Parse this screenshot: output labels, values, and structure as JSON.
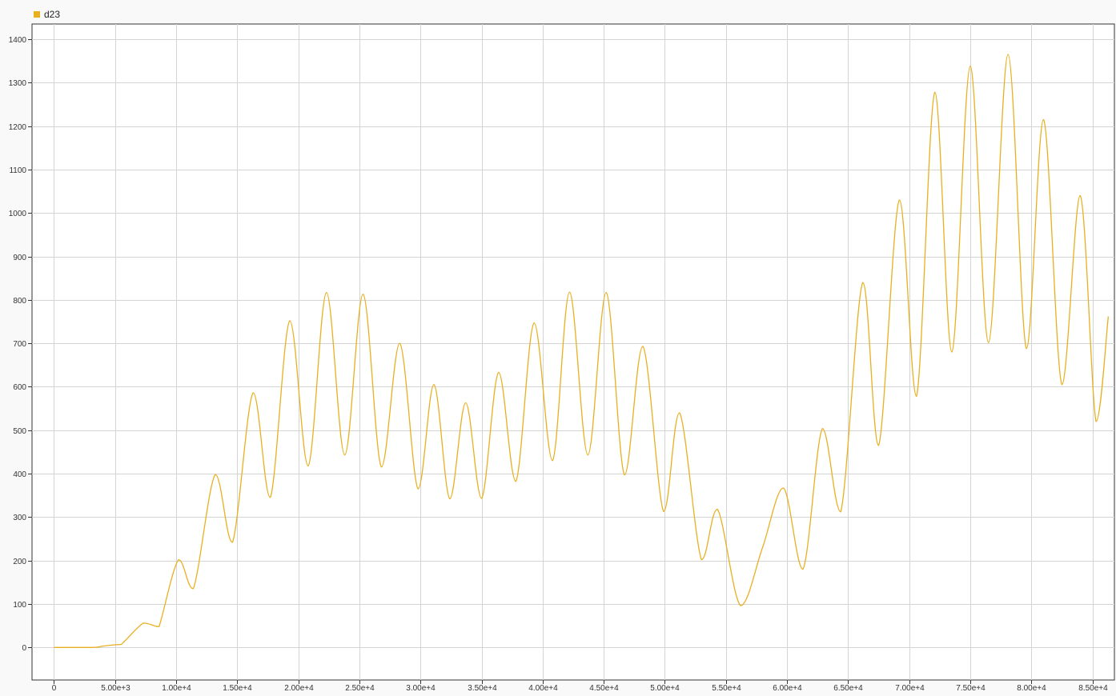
{
  "chart_data": {
    "type": "line",
    "title": "",
    "xlabel": "",
    "ylabel": "",
    "grid": true,
    "legend_position": "top-left",
    "xlim": [
      -1800,
      86800
    ],
    "ylim": [
      -75,
      1435
    ],
    "x_ticks": [
      0,
      5000,
      10000,
      15000,
      20000,
      25000,
      30000,
      35000,
      40000,
      45000,
      50000,
      55000,
      60000,
      65000,
      70000,
      75000,
      80000,
      85000
    ],
    "x_tick_labels": [
      "0",
      "5.00e+3",
      "1.00e+4",
      "1.50e+4",
      "2.00e+4",
      "2.50e+4",
      "3.00e+4",
      "3.50e+4",
      "4.00e+4",
      "4.50e+4",
      "5.00e+4",
      "5.50e+4",
      "6.00e+4",
      "6.50e+4",
      "7.00e+4",
      "7.50e+4",
      "8.00e+4",
      "8.50e+4"
    ],
    "y_ticks": [
      0,
      100,
      200,
      300,
      400,
      500,
      600,
      700,
      800,
      900,
      1000,
      1100,
      1200,
      1300,
      1400
    ],
    "y_tick_labels": [
      "0",
      "100",
      "200",
      "300",
      "400",
      "500",
      "600",
      "700",
      "800",
      "900",
      "1000",
      "1100",
      "1200",
      "1300",
      "1400"
    ],
    "series": [
      {
        "name": "d23",
        "color": "#e8b021",
        "points": [
          [
            0,
            0
          ],
          [
            3200,
            0
          ],
          [
            4000,
            3
          ],
          [
            5000,
            6
          ],
          [
            5500,
            7
          ],
          [
            7300,
            56
          ],
          [
            8200,
            50
          ],
          [
            8600,
            48
          ],
          [
            10200,
            202
          ],
          [
            11400,
            135
          ],
          [
            13200,
            398
          ],
          [
            14600,
            242
          ],
          [
            16300,
            586
          ],
          [
            17700,
            345
          ],
          [
            19300,
            752
          ],
          [
            20800,
            418
          ],
          [
            22300,
            817
          ],
          [
            23800,
            443
          ],
          [
            25300,
            813
          ],
          [
            26800,
            415
          ],
          [
            28300,
            700
          ],
          [
            29800,
            365
          ],
          [
            31100,
            605
          ],
          [
            32400,
            342
          ],
          [
            33700,
            563
          ],
          [
            35000,
            343
          ],
          [
            36400,
            633
          ],
          [
            37800,
            382
          ],
          [
            39300,
            747
          ],
          [
            40800,
            430
          ],
          [
            42200,
            818
          ],
          [
            43700,
            443
          ],
          [
            45200,
            817
          ],
          [
            46700,
            397
          ],
          [
            48200,
            693
          ],
          [
            49900,
            313
          ],
          [
            51200,
            540
          ],
          [
            53000,
            202
          ],
          [
            54300,
            318
          ],
          [
            56200,
            96
          ],
          [
            58000,
            230
          ],
          [
            59700,
            367
          ],
          [
            61300,
            180
          ],
          [
            62900,
            504
          ],
          [
            64400,
            312
          ],
          [
            66200,
            840
          ],
          [
            67500,
            465
          ],
          [
            69200,
            1030
          ],
          [
            70600,
            578
          ],
          [
            72100,
            1278
          ],
          [
            73500,
            680
          ],
          [
            75000,
            1338
          ],
          [
            76500,
            702
          ],
          [
            78100,
            1365
          ],
          [
            79600,
            688
          ],
          [
            81000,
            1215
          ],
          [
            82500,
            605
          ],
          [
            84000,
            1040
          ],
          [
            85300,
            520
          ],
          [
            86300,
            762
          ]
        ]
      }
    ]
  }
}
